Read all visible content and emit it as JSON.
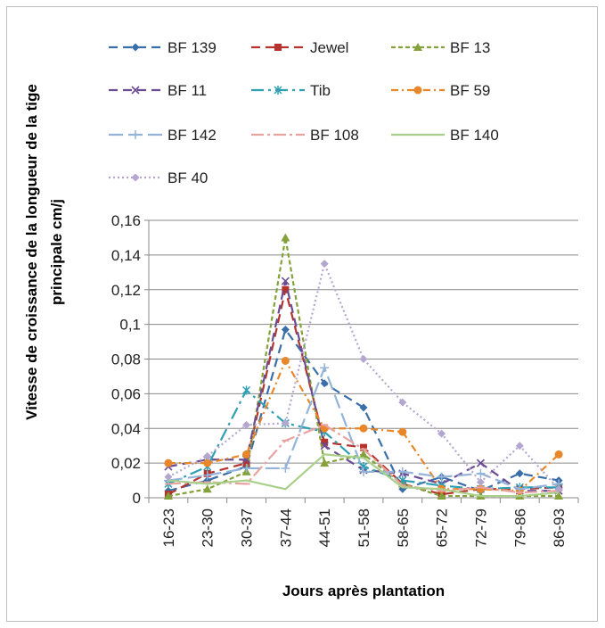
{
  "chart_data": {
    "type": "line",
    "title": "",
    "xlabel": "Jours après plantation",
    "ylabel_lines": [
      "Vitesse de croissance de la longueur de la tige",
      "principale cm/j"
    ],
    "categories": [
      "16-23",
      "23-30",
      "30-37",
      "37-44",
      "44-51",
      "51-58",
      "58-65",
      "65-72",
      "72-79",
      "79-86",
      "86-93"
    ],
    "ylim": [
      0,
      0.16
    ],
    "yticks": [
      "0",
      "0,02",
      "0,04",
      "0,06",
      "0,08",
      "0,1",
      "0,12",
      "0,14",
      "0,16"
    ],
    "grid": true,
    "legend_position": "top",
    "series": [
      {
        "name": "BF 139",
        "color": "#3a6ea8",
        "dash": "10,6",
        "marker": "diamond",
        "values": [
          0.004,
          0.01,
          0.018,
          0.097,
          0.066,
          0.052,
          0.005,
          0.012,
          0.004,
          0.014,
          0.01
        ]
      },
      {
        "name": "Jewel",
        "color": "#b5332d",
        "dash": "10,6",
        "marker": "square",
        "values": [
          0.002,
          0.014,
          0.02,
          0.12,
          0.032,
          0.029,
          0.008,
          0.002,
          0.005,
          0.005,
          0.006
        ]
      },
      {
        "name": "BF 13",
        "color": "#84a13a",
        "dash": "5,3",
        "marker": "triangle",
        "values": [
          0.001,
          0.005,
          0.015,
          0.15,
          0.02,
          0.025,
          0.008,
          0.001,
          0.001,
          0.001,
          0.001
        ]
      },
      {
        "name": "BF 11",
        "color": "#6a4c93",
        "dash": "10,6",
        "marker": "x",
        "values": [
          0.018,
          0.022,
          0.022,
          0.125,
          0.03,
          0.016,
          0.014,
          0.008,
          0.02,
          0.004,
          0.004
        ]
      },
      {
        "name": "Tib",
        "color": "#2f9fb3",
        "dash": "14,5,3,5",
        "marker": "star",
        "values": [
          0.008,
          0.018,
          0.062,
          0.043,
          0.038,
          0.018,
          0.01,
          0.007,
          0.005,
          0.006,
          0.006
        ]
      },
      {
        "name": "BF 59",
        "color": "#e8872a",
        "dash": "8,4,2,4",
        "marker": "circle",
        "values": [
          0.02,
          0.02,
          0.025,
          0.079,
          0.04,
          0.04,
          0.038,
          0.005,
          0.005,
          0.004,
          0.025
        ]
      },
      {
        "name": "BF 142",
        "color": "#93b3d8",
        "dash": "16,6",
        "marker": "plus",
        "values": [
          0.01,
          0.013,
          0.017,
          0.017,
          0.075,
          0.015,
          0.015,
          0.012,
          0.014,
          0.005,
          0.008
        ]
      },
      {
        "name": "BF 108",
        "color": "#e8a3a0",
        "dash": "14,4,3,4",
        "marker": "dash",
        "values": [
          0.008,
          0.009,
          0.008,
          0.033,
          0.042,
          0.028,
          0.007,
          0.004,
          0.006,
          0.003,
          0.004
        ]
      },
      {
        "name": "BF 140",
        "color": "#a8d08a",
        "dash": "",
        "marker": "none",
        "values": [
          0.01,
          0.008,
          0.01,
          0.005,
          0.025,
          0.023,
          0.006,
          0.005,
          0.001,
          0.001,
          0.003
        ]
      },
      {
        "name": "BF 40",
        "color": "#b4a7cf",
        "dash": "2,3",
        "marker": "diamond",
        "values": [
          0.012,
          0.024,
          0.042,
          0.043,
          0.135,
          0.08,
          0.055,
          0.037,
          0.009,
          0.03,
          0.005
        ]
      }
    ]
  }
}
